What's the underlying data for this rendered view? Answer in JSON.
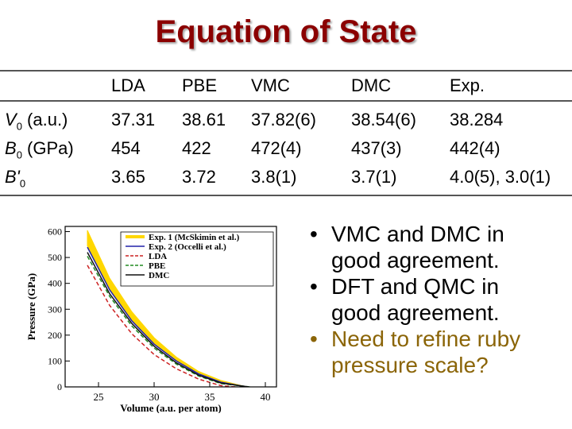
{
  "title": "Equation of State",
  "table": {
    "columns": [
      "LDA",
      "PBE",
      "VMC",
      "DMC",
      "Exp."
    ],
    "rows": [
      {
        "symbol": "V",
        "sub": "0",
        "unit": " (a.u.)",
        "values": [
          "37.31",
          "38.61",
          "37.82(6)",
          "38.54(6)",
          "38.284"
        ]
      },
      {
        "symbol": "B",
        "sub": "0",
        "unit": " (GPa)",
        "values": [
          "454",
          "422",
          "472(4)",
          "437(3)",
          "442(4)"
        ]
      },
      {
        "symbol": "B'",
        "sub": "0",
        "unit": "",
        "values": [
          "3.65",
          "3.72",
          "3.8(1)",
          "3.7(1)",
          "4.0(5), 3.0(1)"
        ]
      }
    ]
  },
  "bullets": [
    {
      "text": "VMC and DMC in good agreement.",
      "lines": [
        "VMC and DMC in",
        "good agreement."
      ]
    },
    {
      "text": "DFT and QMC in good agreement.",
      "lines": [
        "DFT and QMC in",
        "good agreement."
      ]
    },
    {
      "text": "Need to refine ruby pressure scale?",
      "lines": [
        "Need to refine ruby",
        "pressure scale?"
      ],
      "accent": true
    }
  ],
  "chart_data": {
    "type": "line",
    "xlabel": "Volume (a.u. per atom)",
    "ylabel": "Pressure (GPa)",
    "xlim": [
      22,
      41
    ],
    "ylim": [
      0,
      620
    ],
    "xticks": [
      25,
      30,
      35,
      40
    ],
    "yticks": [
      0,
      100,
      200,
      300,
      400,
      500,
      600
    ],
    "legend_position": "top-right",
    "series": [
      {
        "name": "Exp. 1 (McSkimin et al.)",
        "color": "#FFD700",
        "style": "band",
        "x": [
          24,
          26,
          28,
          30,
          32,
          34,
          36,
          38.3
        ],
        "upper": [
          605,
          420,
          290,
          190,
          115,
          60,
          25,
          0
        ],
        "lower": [
          545,
          375,
          255,
          165,
          100,
          50,
          18,
          0
        ]
      },
      {
        "name": "Exp. 2 (Occelli et al.)",
        "color": "#2222AA",
        "style": "solid",
        "x": [
          24,
          26,
          28,
          30,
          32,
          34,
          36,
          38.3
        ],
        "y": [
          540,
          375,
          255,
          165,
          100,
          50,
          18,
          0
        ]
      },
      {
        "name": "LDA",
        "color": "#CC2222",
        "style": "dashed",
        "x": [
          24,
          26,
          28,
          30,
          32,
          34,
          36,
          37.3,
          39,
          40
        ],
        "y": [
          470,
          315,
          205,
          125,
          70,
          30,
          5,
          0,
          -15,
          -25
        ]
      },
      {
        "name": "PBE",
        "color": "#228B22",
        "style": "dashed",
        "x": [
          24,
          26,
          28,
          30,
          32,
          34,
          36,
          38.6
        ],
        "y": [
          505,
          350,
          235,
          150,
          88,
          42,
          13,
          0
        ]
      },
      {
        "name": "DMC",
        "color": "#111111",
        "style": "solid",
        "x": [
          24,
          26,
          28,
          30,
          32,
          34,
          36,
          38.5
        ],
        "y": [
          520,
          360,
          245,
          157,
          93,
          45,
          15,
          0
        ]
      }
    ]
  }
}
